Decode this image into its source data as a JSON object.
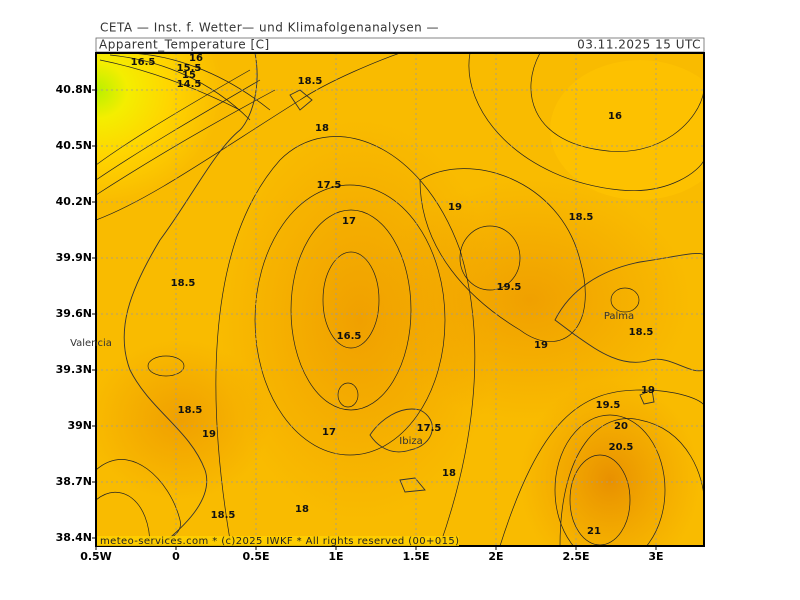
{
  "header": {
    "institute": "CETA — Inst. f. Wetter— und Klimafolgenanalysen —",
    "parameter": "Apparent_Temperature [C]",
    "valid_time": "03.11.2025 15 UTC"
  },
  "map": {
    "lat_labels": [
      "40.8N",
      "40.5N",
      "40.2N",
      "39.9N",
      "39.6N",
      "39.3N",
      "39N",
      "38.7N",
      "38.4N"
    ],
    "lon_labels": [
      "0.5W",
      "0",
      "0.5E",
      "1E",
      "1.5E",
      "2E",
      "2.5E",
      "3E"
    ],
    "places": [
      "Valencia",
      "Palma",
      "Ibiza"
    ],
    "contour_labels": [
      "16.5",
      "16",
      "15.5",
      "15",
      "14.5",
      "18.5",
      "18",
      "17.5",
      "17",
      "16.5",
      "17",
      "17.5",
      "18",
      "18.5",
      "19",
      "18.5",
      "18.5",
      "18",
      "16",
      "19",
      "18.5",
      "19.5",
      "19",
      "18.5",
      "19",
      "19.5",
      "20",
      "20.5",
      "21"
    ]
  },
  "footer": "meteo-services.com * (c)2025 IWKF * All rights reserved (00+015)"
}
